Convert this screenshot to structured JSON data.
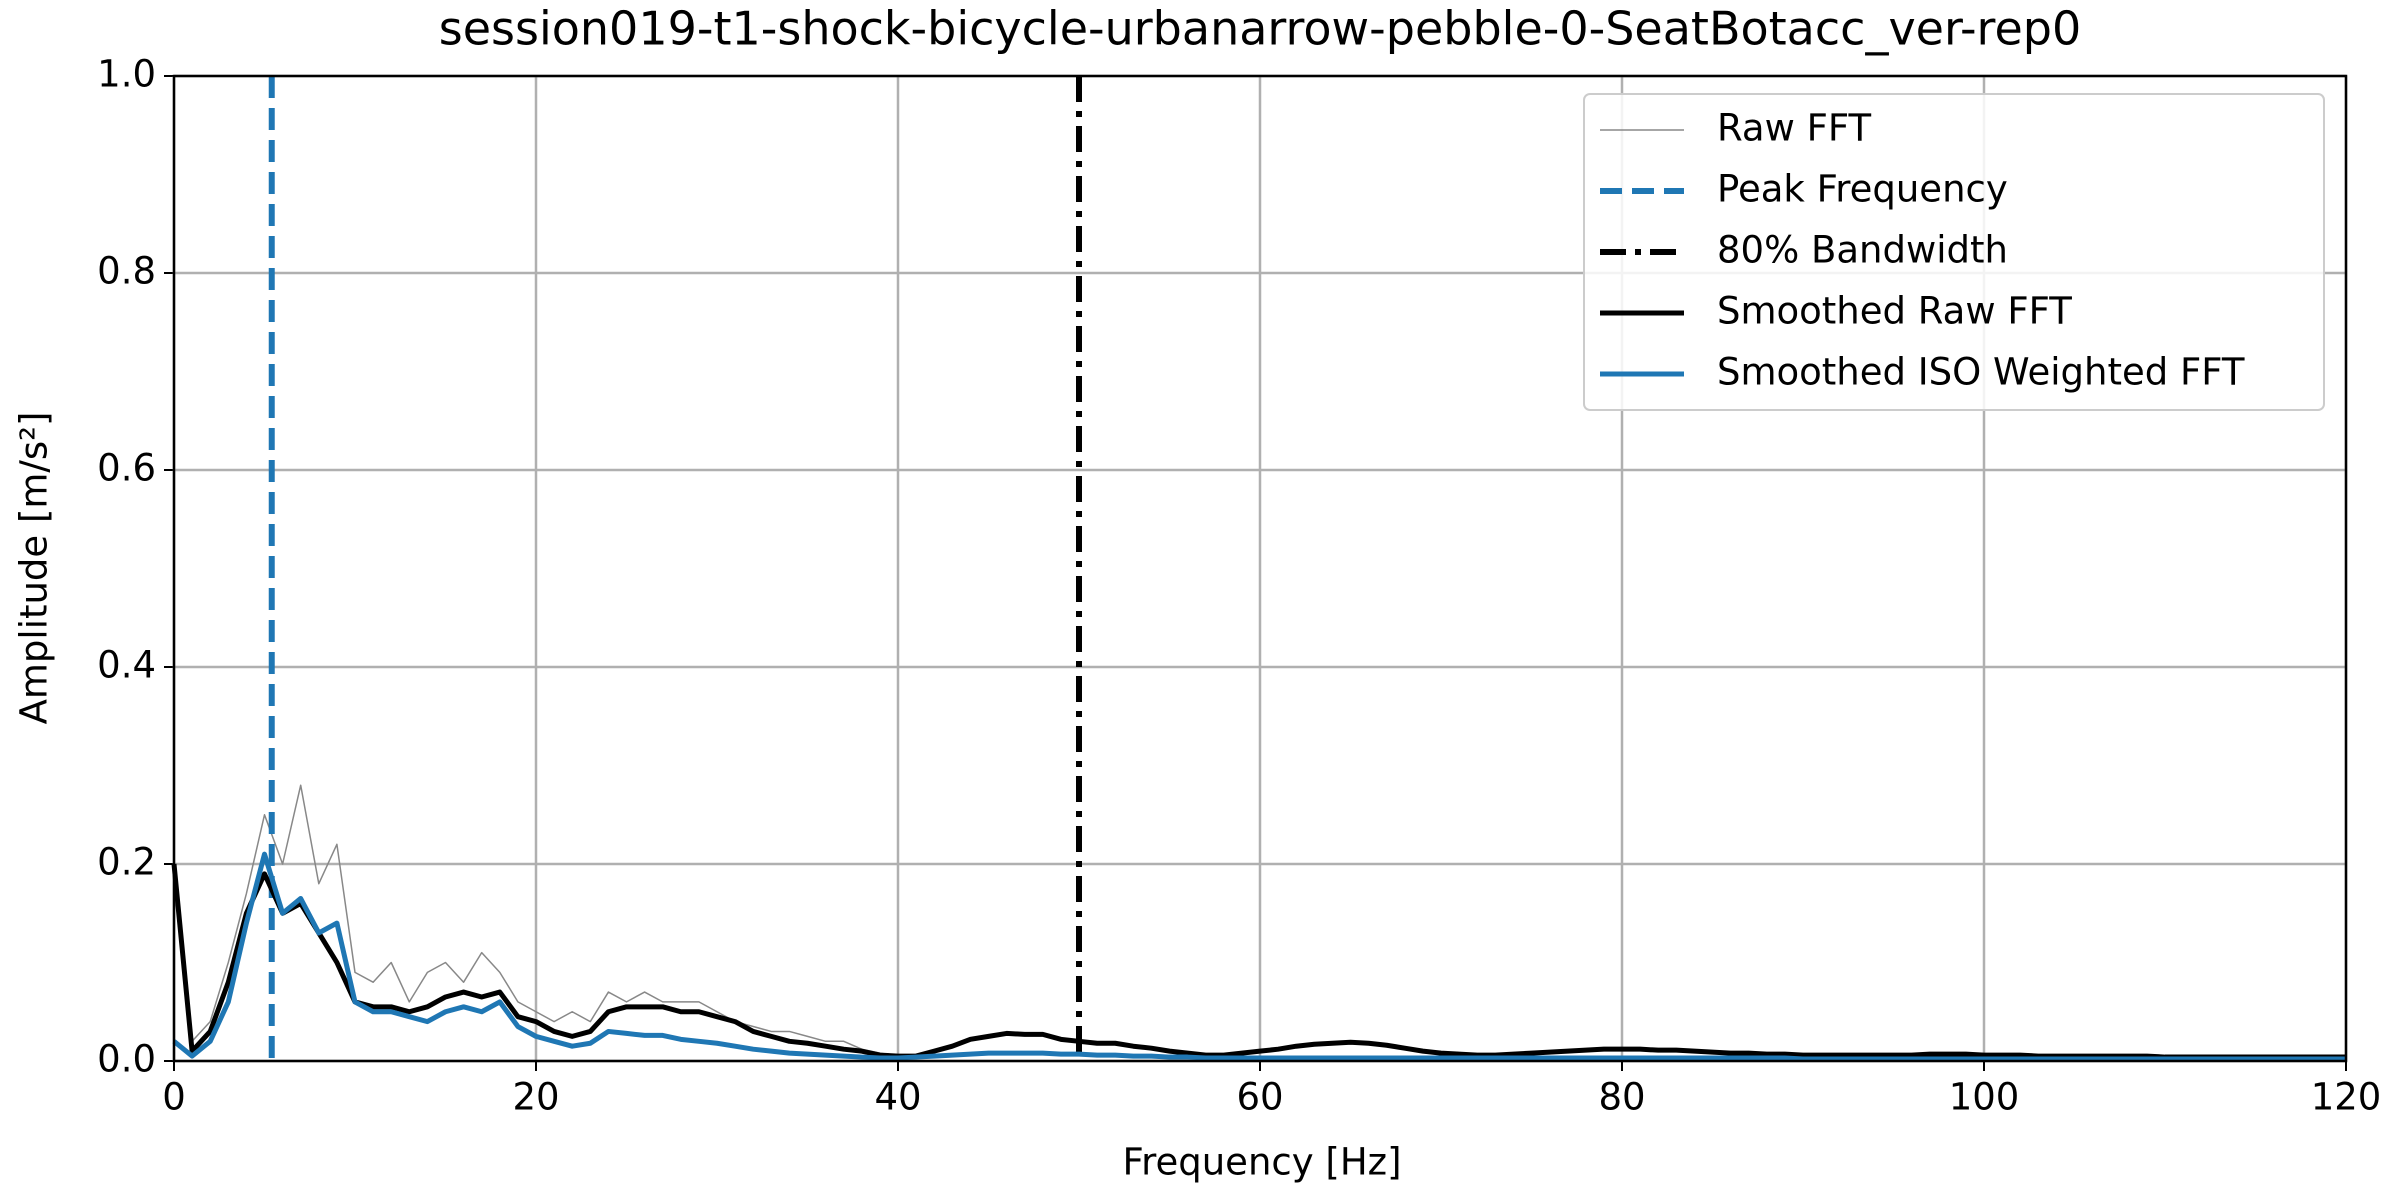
{
  "chart_data": {
    "type": "line",
    "title": "session019-t1-shock-bicycle-urbanarrow-pebble-0-SeatBotacc_ver-rep0",
    "x_label": "Frequency [Hz]",
    "y_label": "Amplitude [m/s²]",
    "x": [
      0,
      1,
      2,
      3,
      4,
      5,
      6,
      7,
      8,
      9,
      10,
      11,
      12,
      13,
      14,
      15,
      16,
      17,
      18,
      19,
      20,
      21,
      22,
      23,
      24,
      25,
      26,
      27,
      28,
      29,
      30,
      31,
      32,
      33,
      34,
      35,
      36,
      37,
      38,
      39,
      40,
      41,
      42,
      43,
      44,
      45,
      46,
      47,
      48,
      49,
      50,
      51,
      52,
      53,
      54,
      55,
      56,
      57,
      58,
      59,
      60,
      61,
      62,
      63,
      64,
      65,
      66,
      67,
      68,
      69,
      70,
      71,
      72,
      73,
      74,
      75,
      76,
      77,
      78,
      79,
      80,
      81,
      82,
      83,
      84,
      85,
      86,
      87,
      88,
      89,
      90,
      91,
      92,
      93,
      94,
      95,
      96,
      97,
      98,
      99,
      100,
      101,
      102,
      103,
      104,
      105,
      106,
      107,
      108,
      109,
      110,
      111,
      112,
      113,
      114,
      115,
      116,
      117,
      118,
      119,
      120
    ],
    "series": [
      {
        "name": "Raw FFT",
        "color": "#888888",
        "linewidth": 1.5,
        "dash": "solid",
        "values": [
          0.2,
          0.02,
          0.04,
          0.1,
          0.17,
          0.25,
          0.2,
          0.28,
          0.18,
          0.22,
          0.09,
          0.08,
          0.1,
          0.06,
          0.09,
          0.1,
          0.08,
          0.11,
          0.09,
          0.06,
          0.05,
          0.04,
          0.05,
          0.04,
          0.07,
          0.06,
          0.07,
          0.06,
          0.06,
          0.06,
          0.05,
          0.04,
          0.035,
          0.03,
          0.03,
          0.025,
          0.02,
          0.02,
          0.012,
          0.008,
          0.005,
          0.005,
          0.01,
          0.015,
          0.022,
          0.025,
          0.028,
          0.027,
          0.027,
          0.022,
          0.02,
          0.018,
          0.018,
          0.015,
          0.013,
          0.01,
          0.008,
          0.006,
          0.006,
          0.008,
          0.01,
          0.012,
          0.015,
          0.017,
          0.018,
          0.019,
          0.018,
          0.016,
          0.013,
          0.01,
          0.008,
          0.007,
          0.006,
          0.006,
          0.007,
          0.008,
          0.009,
          0.01,
          0.011,
          0.012,
          0.012,
          0.012,
          0.011,
          0.011,
          0.01,
          0.009,
          0.008,
          0.008,
          0.007,
          0.007,
          0.006,
          0.006,
          0.006,
          0.006,
          0.006,
          0.006,
          0.006,
          0.007,
          0.007,
          0.007,
          0.006,
          0.006,
          0.006,
          0.005,
          0.005,
          0.005,
          0.005,
          0.005,
          0.005,
          0.005,
          0.004,
          0.004,
          0.004,
          0.004,
          0.004,
          0.004,
          0.004,
          0.004,
          0.004,
          0.004,
          0.004
        ]
      },
      {
        "name": "Peak Frequency",
        "color": "#1f77b4",
        "linewidth": 6,
        "dash": "dashed",
        "x_value": 5.4
      },
      {
        "name": "80% Bandwidth",
        "color": "#000000",
        "linewidth": 6,
        "dash": "dashdot",
        "x_value": 50
      },
      {
        "name": "Smoothed Raw FFT",
        "color": "#000000",
        "linewidth": 5,
        "dash": "solid",
        "values": [
          0.2,
          0.01,
          0.03,
          0.08,
          0.15,
          0.19,
          0.15,
          0.16,
          0.13,
          0.1,
          0.06,
          0.055,
          0.055,
          0.05,
          0.055,
          0.065,
          0.07,
          0.065,
          0.07,
          0.045,
          0.04,
          0.03,
          0.025,
          0.03,
          0.05,
          0.055,
          0.055,
          0.055,
          0.05,
          0.05,
          0.045,
          0.04,
          0.03,
          0.025,
          0.02,
          0.018,
          0.015,
          0.012,
          0.01,
          0.006,
          0.005,
          0.005,
          0.01,
          0.015,
          0.022,
          0.025,
          0.028,
          0.027,
          0.027,
          0.022,
          0.02,
          0.018,
          0.018,
          0.015,
          0.013,
          0.01,
          0.008,
          0.006,
          0.006,
          0.008,
          0.01,
          0.012,
          0.015,
          0.017,
          0.018,
          0.019,
          0.018,
          0.016,
          0.013,
          0.01,
          0.008,
          0.007,
          0.006,
          0.006,
          0.007,
          0.008,
          0.009,
          0.01,
          0.011,
          0.012,
          0.012,
          0.012,
          0.011,
          0.011,
          0.01,
          0.009,
          0.008,
          0.008,
          0.007,
          0.007,
          0.006,
          0.006,
          0.006,
          0.006,
          0.006,
          0.006,
          0.006,
          0.007,
          0.007,
          0.007,
          0.006,
          0.006,
          0.006,
          0.005,
          0.005,
          0.005,
          0.005,
          0.005,
          0.005,
          0.005,
          0.004,
          0.004,
          0.004,
          0.004,
          0.004,
          0.004,
          0.004,
          0.004,
          0.004,
          0.004,
          0.004
        ]
      },
      {
        "name": "Smoothed ISO Weighted FFT",
        "color": "#1f77b4",
        "linewidth": 5,
        "dash": "solid",
        "values": [
          0.02,
          0.005,
          0.02,
          0.06,
          0.14,
          0.21,
          0.15,
          0.165,
          0.13,
          0.14,
          0.06,
          0.05,
          0.05,
          0.045,
          0.04,
          0.05,
          0.055,
          0.05,
          0.06,
          0.035,
          0.025,
          0.02,
          0.015,
          0.018,
          0.03,
          0.028,
          0.026,
          0.026,
          0.022,
          0.02,
          0.018,
          0.015,
          0.012,
          0.01,
          0.008,
          0.007,
          0.006,
          0.005,
          0.004,
          0.003,
          0.003,
          0.004,
          0.005,
          0.006,
          0.007,
          0.008,
          0.008,
          0.008,
          0.008,
          0.007,
          0.007,
          0.006,
          0.006,
          0.005,
          0.005,
          0.004,
          0.004,
          0.003,
          0.003,
          0.003,
          0.003,
          0.003,
          0.003,
          0.003,
          0.003,
          0.003,
          0.003,
          0.003,
          0.003,
          0.003,
          0.003,
          0.003,
          0.003,
          0.003,
          0.003,
          0.003,
          0.003,
          0.003,
          0.003,
          0.003,
          0.003,
          0.003,
          0.003,
          0.003,
          0.003,
          0.003,
          0.003,
          0.003,
          0.003,
          0.003,
          0.002,
          0.002,
          0.002,
          0.002,
          0.002,
          0.002,
          0.002,
          0.002,
          0.002,
          0.002,
          0.002,
          0.002,
          0.002,
          0.002,
          0.002,
          0.002,
          0.002,
          0.002,
          0.002,
          0.002,
          0.002,
          0.002,
          0.002,
          0.002,
          0.002,
          0.002,
          0.002,
          0.002,
          0.002,
          0.002,
          0.002
        ]
      }
    ],
    "xlim": [
      0,
      120
    ],
    "xticks": [
      0,
      20,
      40,
      60,
      80,
      100,
      120
    ],
    "ylim": [
      0,
      1
    ],
    "yticks": [
      {
        "value": 0,
        "label": "0.0"
      },
      {
        "value": 0.2,
        "label": "0.2"
      },
      {
        "value": 0.4,
        "label": "0.4"
      },
      {
        "value": 0.6,
        "label": "0.6"
      },
      {
        "value": 0.8,
        "label": "0.8"
      },
      {
        "value": 1,
        "label": "1.0"
      }
    ],
    "grid": true,
    "legend": "upper right"
  }
}
